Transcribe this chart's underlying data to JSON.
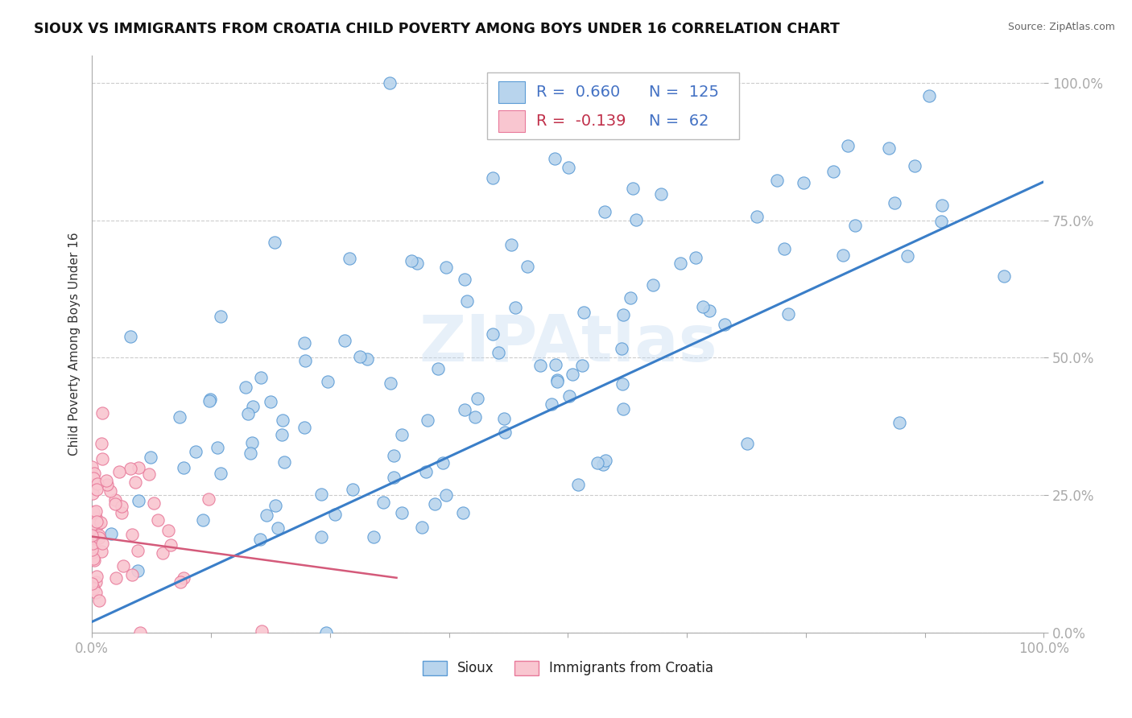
{
  "title": "SIOUX VS IMMIGRANTS FROM CROATIA CHILD POVERTY AMONG BOYS UNDER 16 CORRELATION CHART",
  "source": "Source: ZipAtlas.com",
  "ylabel": "Child Poverty Among Boys Under 16",
  "watermark": "ZIPAtlas",
  "legend_blue_r_val": "0.660",
  "legend_blue_n_val": "125",
  "legend_pink_r_val": "-0.139",
  "legend_pink_n_val": "62",
  "blue_fill": "#b8d4ed",
  "blue_edge": "#5b9bd5",
  "pink_fill": "#f9c6d0",
  "pink_edge": "#e8799a",
  "blue_line_color": "#3a7ec8",
  "pink_line_color": "#d45a7a",
  "text_color_blue": "#4472c4",
  "text_color_pink": "#c0304a",
  "background_color": "#ffffff",
  "grid_color": "#cccccc",
  "axis_color": "#aaaaaa",
  "blue_r": 0.66,
  "blue_n": 125,
  "pink_r": -0.139,
  "pink_n": 62,
  "blue_line_x0": 0.0,
  "blue_line_y0": 0.02,
  "blue_line_x1": 1.0,
  "blue_line_y1": 0.82,
  "pink_line_x0": 0.0,
  "pink_line_y0": 0.175,
  "pink_line_x1": 0.32,
  "pink_line_y1": 0.1,
  "xlim": [
    0.0,
    1.0
  ],
  "ylim": [
    0.0,
    1.05
  ],
  "ytick_positions": [
    0.0,
    0.25,
    0.5,
    0.75,
    1.0
  ],
  "ytick_labels": [
    "0.0%",
    "25.0%",
    "50.0%",
    "75.0%",
    "100.0%"
  ],
  "xtick_labels_left": "0.0%",
  "xtick_labels_right": "100.0%",
  "legend_box_left": "Sioux",
  "legend_box_right": "Immigrants from Croatia",
  "marker_size": 120
}
